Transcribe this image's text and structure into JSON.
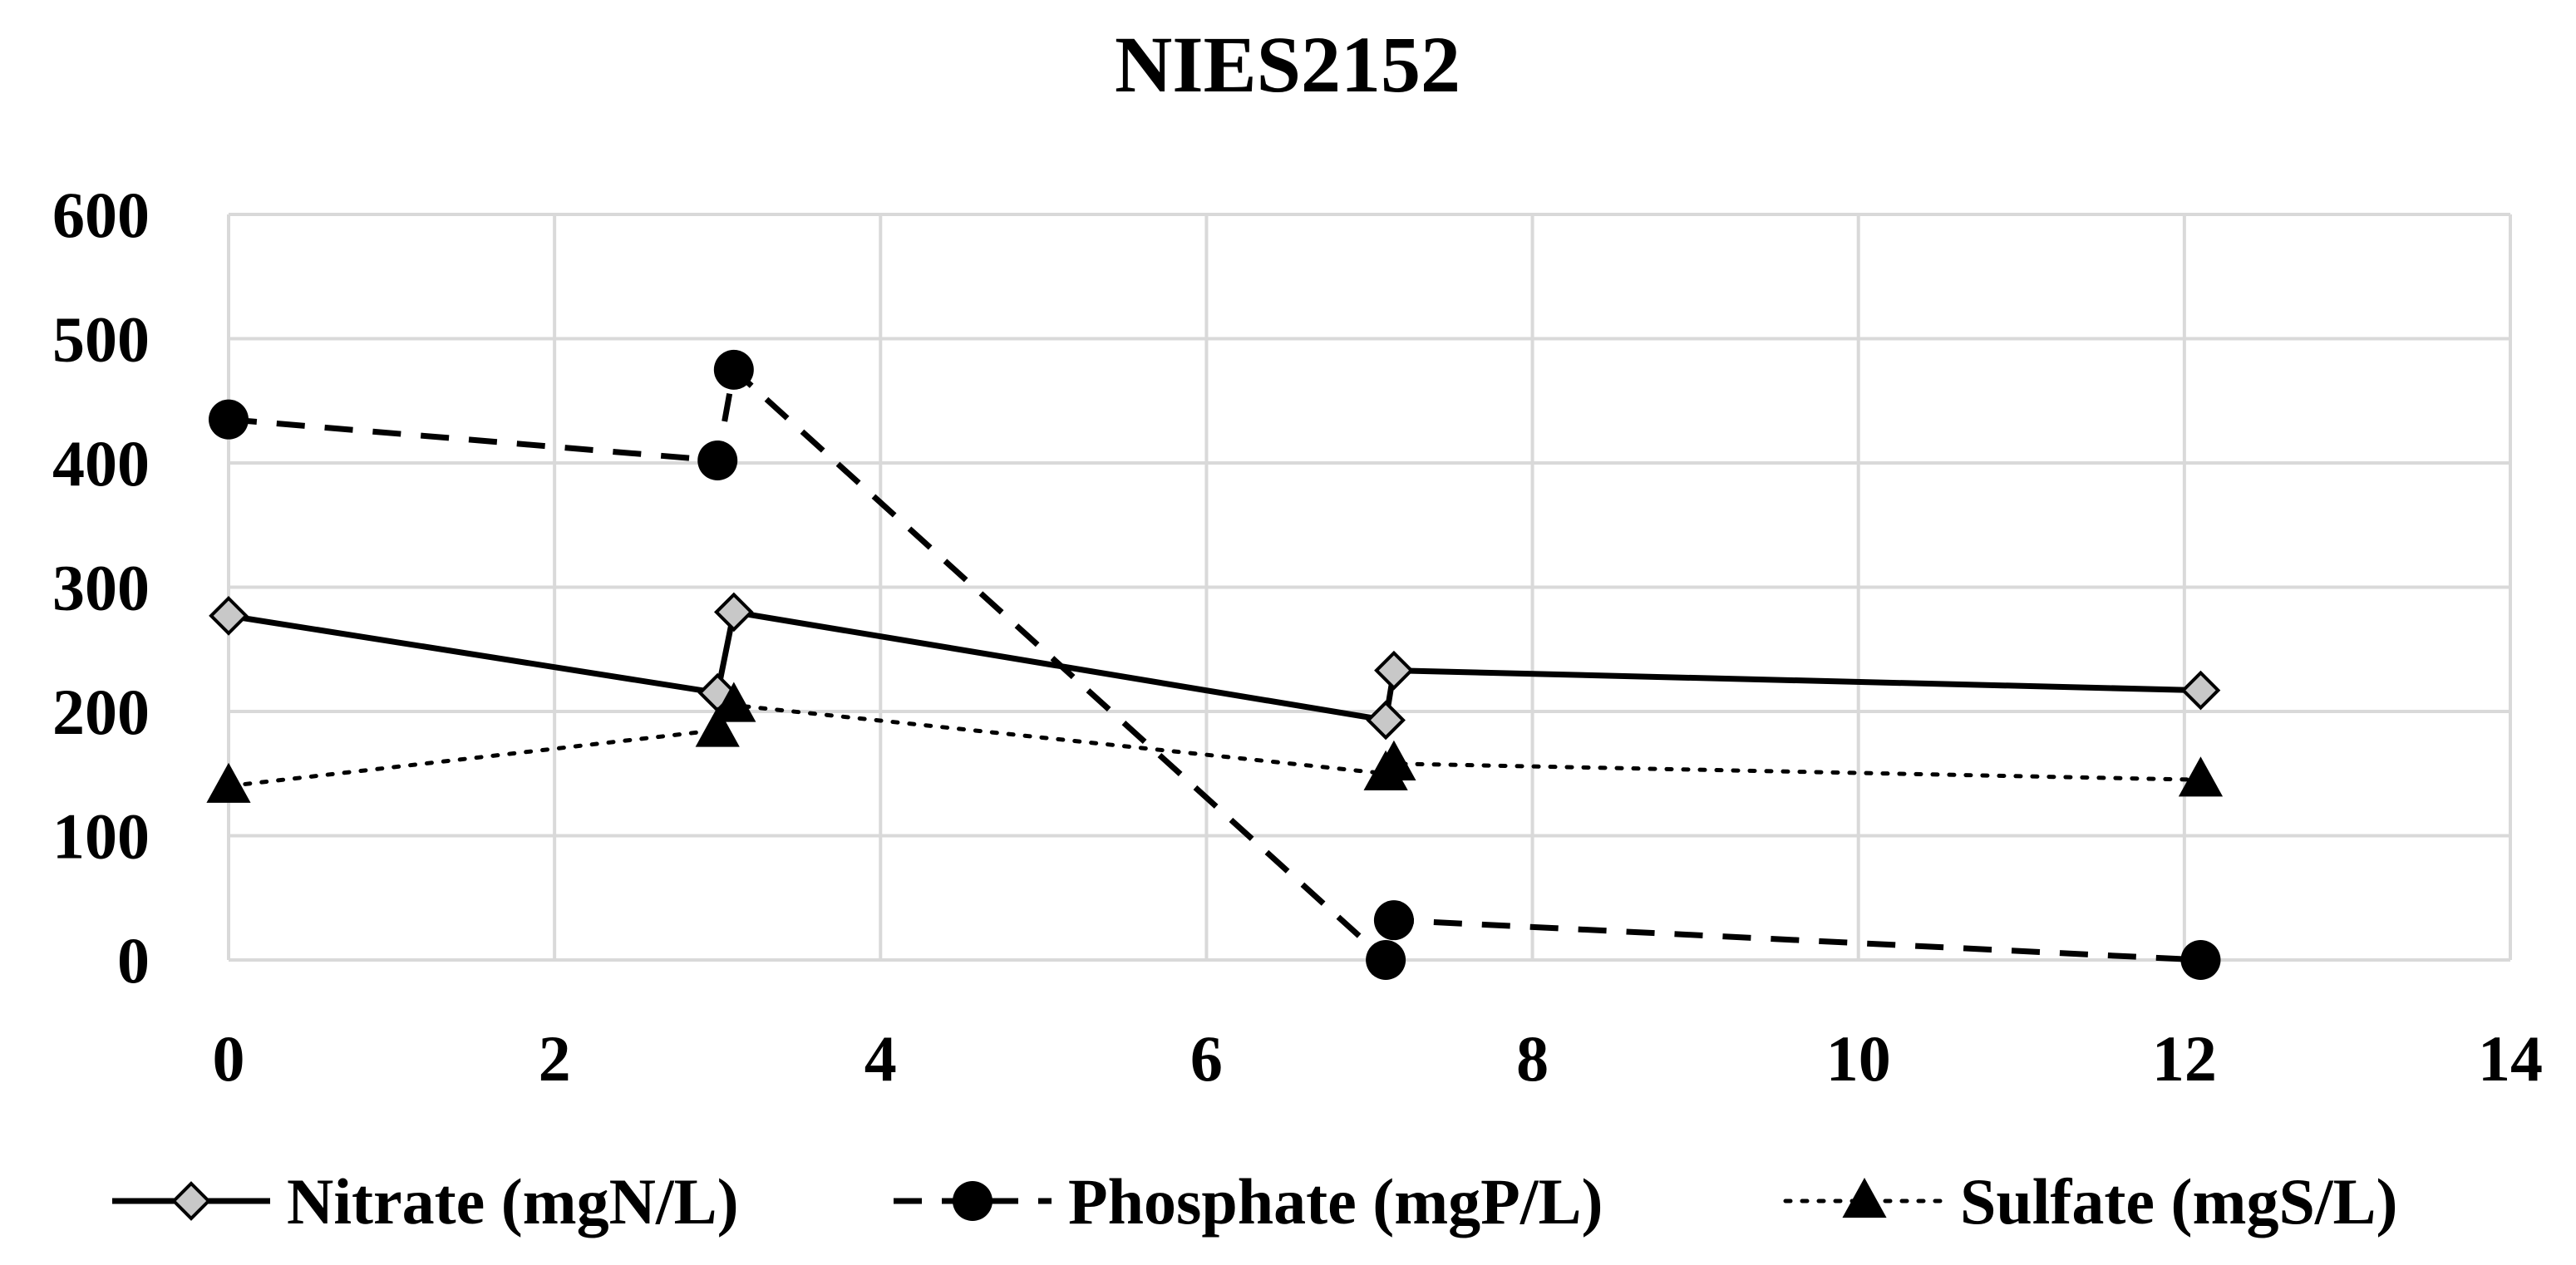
{
  "chart_data": {
    "type": "line",
    "title": "NIES2152",
    "xlabel": "",
    "ylabel": "",
    "xlim": [
      0,
      14
    ],
    "ylim": [
      0,
      600
    ],
    "xticks": [
      0,
      2,
      4,
      6,
      8,
      10,
      12,
      14
    ],
    "yticks": [
      0,
      100,
      200,
      300,
      400,
      500,
      600
    ],
    "grid": true,
    "legend_position": "bottom",
    "series": [
      {
        "name": "Nitrate (mgN/L)",
        "line_style": "solid",
        "marker": "diamond",
        "marker_fill": "#c8c8c8",
        "color": "#000000",
        "x": [
          0,
          3,
          3.1,
          7.1,
          7.15,
          12.1
        ],
        "y": [
          277,
          215,
          280,
          193,
          233,
          217
        ]
      },
      {
        "name": "Phosphate (mgP/L)",
        "line_style": "dashed",
        "marker": "circle",
        "marker_fill": "#000000",
        "color": "#000000",
        "x": [
          0,
          3,
          3.1,
          7.1,
          7.15,
          12.1
        ],
        "y": [
          435,
          402,
          475,
          0,
          32,
          0
        ]
      },
      {
        "name": "Sulfate (mgS/L)",
        "line_style": "dotted",
        "marker": "triangle",
        "marker_fill": "#000000",
        "color": "#000000",
        "x": [
          0,
          3,
          3.1,
          7.1,
          7.15,
          12.1
        ],
        "y": [
          140,
          185,
          205,
          150,
          158,
          145
        ]
      }
    ]
  }
}
